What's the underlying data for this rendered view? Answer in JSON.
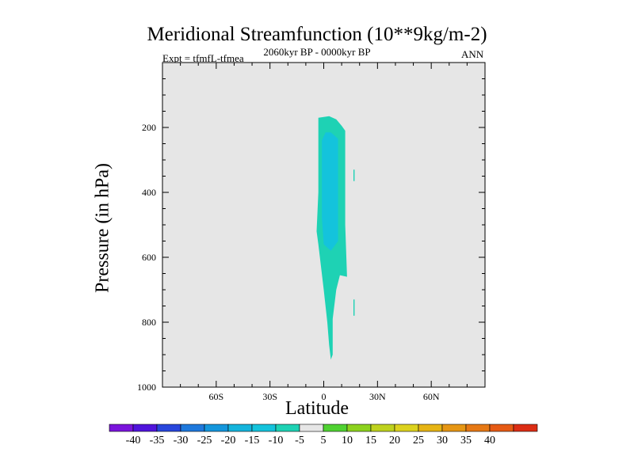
{
  "chart_data": {
    "type": "contour",
    "title": "Meridional Streamfunction (10**9kg/m-2)",
    "subtitle": "2060kyr BP - 0000kyr BP",
    "left_label": "Expt = tfmfL-tfmea",
    "right_label": "ANN",
    "xlabel": "Latitude",
    "ylabel": "Pressure (in hPa)",
    "xlim": [
      -90,
      90
    ],
    "ylim": [
      1000,
      0
    ],
    "x_ticks": [
      {
        "value": -60,
        "label": "60S"
      },
      {
        "value": -30,
        "label": "30S"
      },
      {
        "value": 0,
        "label": "0"
      },
      {
        "value": 30,
        "label": "30N"
      },
      {
        "value": 60,
        "label": "60N"
      }
    ],
    "y_ticks": [
      {
        "value": 200,
        "label": "200"
      },
      {
        "value": 400,
        "label": "400"
      },
      {
        "value": 600,
        "label": "600"
      },
      {
        "value": 800,
        "label": "800"
      },
      {
        "value": 1000,
        "label": "1000"
      }
    ],
    "background_color": "#e6e6e6",
    "regions": [
      {
        "name": "level-minus-10-to-minus-5",
        "color": "#1ed2b4",
        "points": [
          [
            -3,
            170
          ],
          [
            3,
            165
          ],
          [
            7,
            175
          ],
          [
            10,
            195
          ],
          [
            12,
            210
          ],
          [
            12,
            500
          ],
          [
            13,
            660
          ],
          [
            9,
            655
          ],
          [
            7,
            700
          ],
          [
            5,
            790
          ],
          [
            5,
            900
          ],
          [
            4,
            915
          ],
          [
            3,
            870
          ],
          [
            2,
            800
          ],
          [
            0,
            700
          ],
          [
            -3,
            560
          ],
          [
            -4,
            520
          ],
          [
            -3,
            400
          ],
          [
            -3,
            170
          ]
        ]
      },
      {
        "name": "level-minus-15-to-minus-10",
        "color": "#14c3dc",
        "points": [
          [
            -1,
            240
          ],
          [
            1,
            215
          ],
          [
            4,
            215
          ],
          [
            8,
            235
          ],
          [
            8,
            340
          ],
          [
            8,
            550
          ],
          [
            4,
            580
          ],
          [
            0,
            560
          ],
          [
            -1,
            480
          ],
          [
            -1,
            300
          ],
          [
            -1,
            240
          ]
        ]
      },
      {
        "name": "small-patch-1",
        "color": "#1ed2b4",
        "points": [
          [
            16.6,
            330
          ],
          [
            17.2,
            330
          ],
          [
            17.2,
            365
          ],
          [
            16.6,
            365
          ]
        ]
      },
      {
        "name": "small-patch-2",
        "color": "#1ed2b4",
        "points": [
          [
            16.6,
            730
          ],
          [
            17.2,
            730
          ],
          [
            17.2,
            780
          ],
          [
            16.6,
            780
          ]
        ]
      }
    ],
    "colorbar": {
      "colors": [
        "#7a14dc",
        "#5014dc",
        "#2846dc",
        "#1e78dc",
        "#1496dc",
        "#14b4dc",
        "#14c3dc",
        "#1ed2b4",
        "#e6e6e6",
        "#50d232",
        "#8cd21e",
        "#bed21e",
        "#dcd21e",
        "#e6b414",
        "#e69614",
        "#e67814",
        "#e65a14",
        "#dc2d14"
      ],
      "labels": [
        "-40",
        "-35",
        "-30",
        "-25",
        "-20",
        "-15",
        "-10",
        "-5",
        "5",
        "10",
        "15",
        "20",
        "25",
        "30",
        "35",
        "40"
      ]
    }
  }
}
